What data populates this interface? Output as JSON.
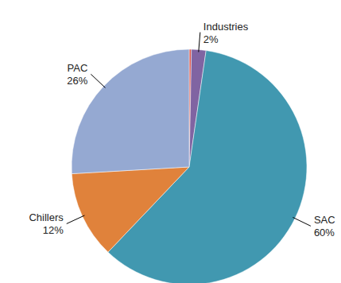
{
  "chart_data": {
    "type": "pie",
    "categories": [
      null,
      "Industries",
      "SAC",
      "Chillers",
      "PAC"
    ],
    "values": [
      0.3,
      2,
      60,
      12,
      26
    ],
    "value_labels": [
      null,
      "2%",
      "60%",
      "12%",
      "26%"
    ],
    "colors": [
      "#d9534a",
      "#8064a2",
      "#4198b0",
      "#e0823b",
      "#95a9d2"
    ],
    "data_labels": true
  }
}
